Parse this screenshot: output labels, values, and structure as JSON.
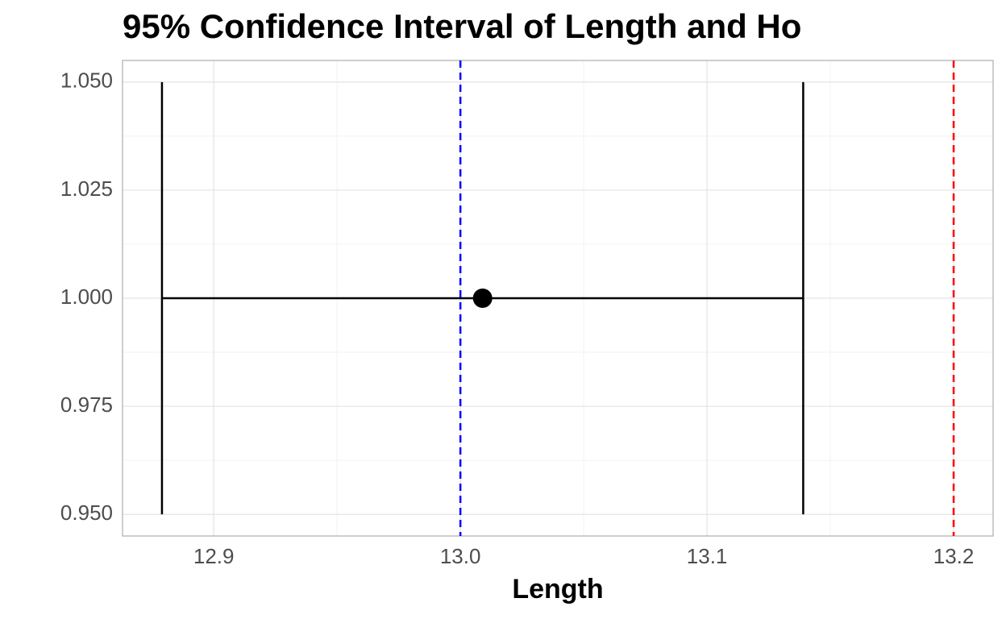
{
  "chart_data": {
    "type": "errorbar",
    "title": "95% Confidence Interval of Length and Ho",
    "x_label": "Length",
    "xlim": [
      12.863,
      13.216
    ],
    "ylim": [
      0.945,
      1.055
    ],
    "xticks": [
      {
        "value": 12.9,
        "label": "12.9"
      },
      {
        "value": 13,
        "label": "13.0"
      },
      {
        "value": 13.1,
        "label": "13.1"
      },
      {
        "value": 13.2,
        "label": "13.2"
      }
    ],
    "yticks": [
      {
        "value": 0.95,
        "label": "0.950"
      },
      {
        "value": 0.975,
        "label": "0.975"
      },
      {
        "value": 1,
        "label": "1.000"
      },
      {
        "value": 1.025,
        "label": "1.025"
      },
      {
        "value": 1.05,
        "label": "1.050"
      }
    ],
    "x_minor_grid": [
      12.95,
      13.05,
      13.15
    ],
    "y_minor_grid": [
      0.9625,
      0.9875,
      1.0125,
      1.0375
    ],
    "grid": true,
    "series": [
      {
        "color": "#000000",
        "x": 13.009,
        "y": 1,
        "lower": 12.879,
        "upper": 13.139,
        "cap_ymin": 0.95,
        "cap_ymax": 1.05
      }
    ],
    "vlines": [
      {
        "x": 13,
        "color": "#0000ff",
        "dashed": true
      },
      {
        "x": 13.2,
        "color": "#ff0000",
        "dashed": true
      }
    ]
  }
}
